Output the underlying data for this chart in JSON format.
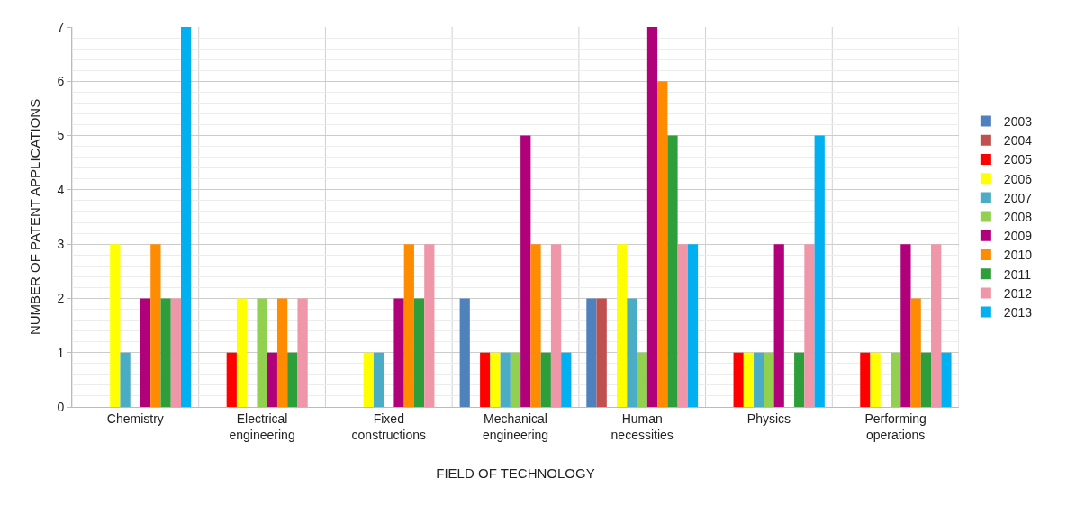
{
  "chart_data": {
    "type": "bar",
    "xlabel": "FIELD OF TECHNOLOGY",
    "ylabel": "NUMBER OF PATENT APPLICATIONS",
    "categories": [
      "Chemistry",
      "Electrical engineering",
      "Fixed constructions",
      "Mechanical engineering",
      "Human necessities",
      "Physics",
      "Performing operations"
    ],
    "series": [
      {
        "name": "2003",
        "color": "#4f81bd",
        "values": [
          0,
          0,
          0,
          2,
          2,
          0,
          0
        ]
      },
      {
        "name": "2004",
        "color": "#c0504d",
        "values": [
          0,
          0,
          0,
          0,
          2,
          0,
          0
        ]
      },
      {
        "name": "2005",
        "color": "#ff0000",
        "values": [
          0,
          1,
          0,
          1,
          0,
          1,
          1
        ]
      },
      {
        "name": "2006",
        "color": "#ffff00",
        "values": [
          3,
          2,
          1,
          1,
          3,
          1,
          1
        ]
      },
      {
        "name": "2007",
        "color": "#4bacc6",
        "values": [
          1,
          0,
          1,
          1,
          2,
          1,
          0
        ]
      },
      {
        "name": "2008",
        "color": "#92d050",
        "values": [
          0,
          2,
          0,
          1,
          1,
          1,
          1
        ]
      },
      {
        "name": "2009",
        "color": "#b0007a",
        "values": [
          2,
          1,
          2,
          5,
          7,
          3,
          3
        ]
      },
      {
        "name": "2010",
        "color": "#ff8c00",
        "values": [
          3,
          2,
          3,
          3,
          6,
          0,
          2
        ]
      },
      {
        "name": "2011",
        "color": "#2e9e3a",
        "values": [
          2,
          1,
          2,
          1,
          5,
          1,
          1
        ]
      },
      {
        "name": "2012",
        "color": "#ef96a8",
        "values": [
          2,
          2,
          3,
          3,
          3,
          3,
          3
        ]
      },
      {
        "name": "2013",
        "color": "#00b0f0",
        "values": [
          7,
          0,
          0,
          1,
          3,
          5,
          1
        ]
      }
    ],
    "ylim": [
      0,
      7
    ],
    "yticks": [
      0,
      1,
      2,
      3,
      4,
      5,
      6,
      7
    ],
    "grid": "y",
    "legend": "right"
  }
}
